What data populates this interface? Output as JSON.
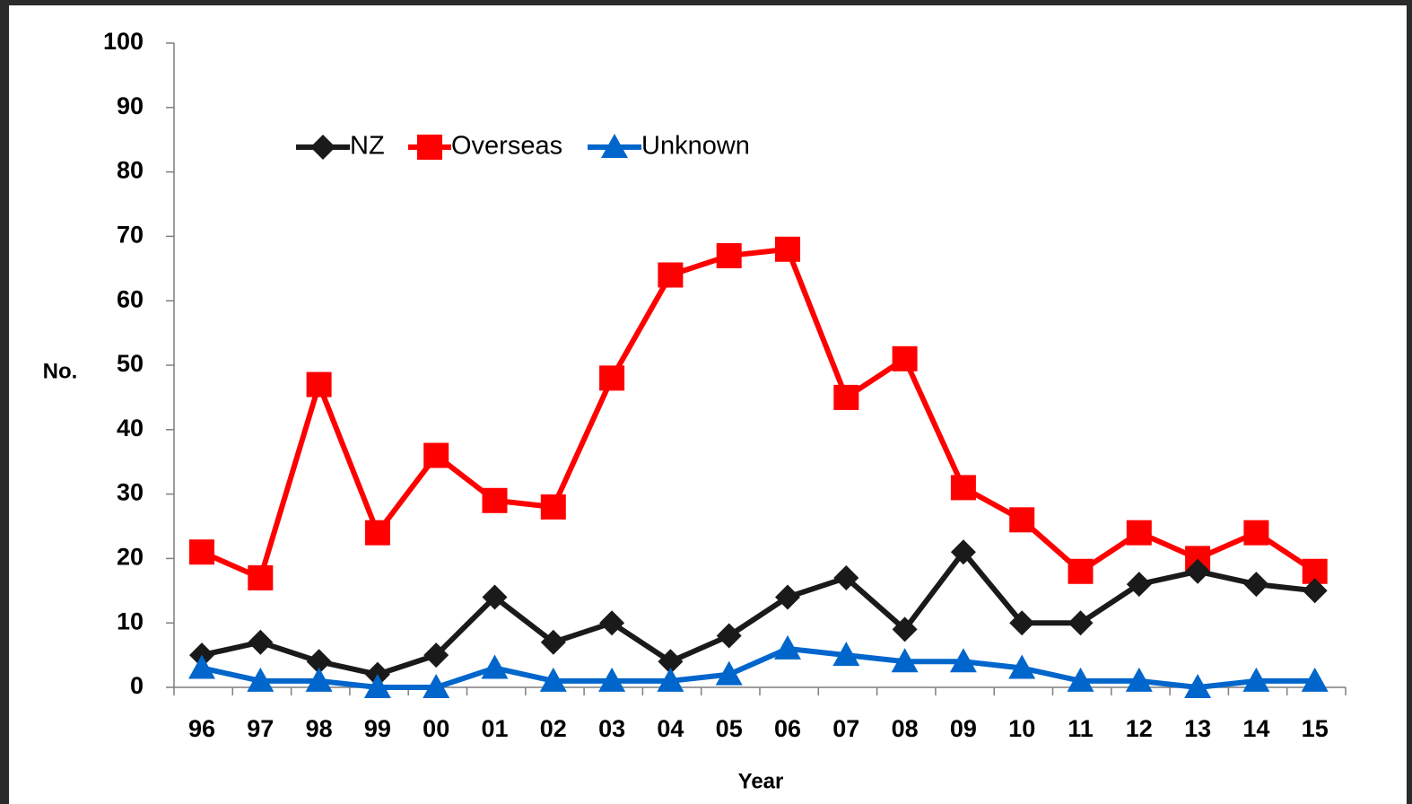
{
  "chart_data": {
    "type": "line",
    "categories": [
      "96",
      "97",
      "98",
      "99",
      "00",
      "01",
      "02",
      "03",
      "04",
      "05",
      "06",
      "07",
      "08",
      "09",
      "10",
      "11",
      "12",
      "13",
      "14",
      "15"
    ],
    "series": [
      {
        "name": "NZ",
        "color": "#1a1a1a",
        "marker": "diamond",
        "values": [
          5,
          7,
          4,
          2,
          5,
          14,
          7,
          10,
          4,
          8,
          14,
          17,
          9,
          21,
          10,
          10,
          16,
          18,
          16,
          15
        ]
      },
      {
        "name": "Overseas",
        "color": "#ff0000",
        "marker": "square",
        "values": [
          21,
          17,
          47,
          24,
          36,
          29,
          28,
          48,
          64,
          67,
          68,
          45,
          51,
          31,
          26,
          18,
          24,
          20,
          24,
          18
        ]
      },
      {
        "name": "Unknown",
        "color": "#0066cc",
        "marker": "triangle",
        "values": [
          3,
          1,
          1,
          0,
          0,
          3,
          1,
          1,
          1,
          2,
          6,
          5,
          4,
          4,
          3,
          1,
          1,
          0,
          1,
          1
        ]
      }
    ],
    "xlabel": "Year",
    "ylabel": "No.",
    "ylim": [
      0,
      100
    ],
    "yticks": [
      "0",
      "10",
      "20",
      "30",
      "40",
      "50",
      "60",
      "70",
      "80",
      "90",
      "100"
    ],
    "grid": false,
    "legend_position": "top-left"
  }
}
